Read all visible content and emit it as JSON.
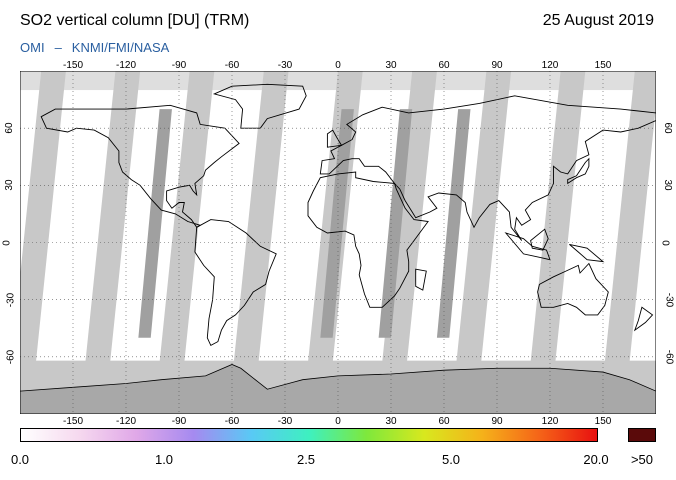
{
  "header": {
    "title": "SO2 vertical column [DU] (TRM)",
    "date": "25 August 2019",
    "credit_a": "OMI",
    "credit_sep": "–",
    "credit_b": "KNMI/FMI/NASA"
  },
  "map": {
    "lon_ticks": [
      "-150",
      "-120",
      "-90",
      "-60",
      "-30",
      "0",
      "30",
      "60",
      "90",
      "120",
      "150"
    ],
    "lat_ticks": [
      "60",
      "30",
      "0",
      "-30",
      "-60"
    ],
    "extent": {
      "lon": [
        -180,
        180
      ],
      "lat": [
        -90,
        90
      ]
    },
    "colors": {
      "ocean_land": "#ffffff",
      "swath": "#c8c8c8",
      "swath_dark": "#a0a0a0",
      "polar_no_data": "#c8c8c8",
      "antarctica": "#a8a8a8",
      "coastline": "#000000",
      "grid": "#555555"
    }
  },
  "colorbar": {
    "labels": [
      "0.0",
      "1.0",
      "2.5",
      "5.0",
      "20.0",
      ">50"
    ],
    "gradient": [
      "#ffffff",
      "#f6d9ef",
      "#e0a8e8",
      "#a58af0",
      "#59c9f5",
      "#3ef0c0",
      "#7ee83c",
      "#d8e81e",
      "#f5b21a",
      "#f56418",
      "#e81010"
    ],
    "over_color": "#5a0a0a"
  }
}
